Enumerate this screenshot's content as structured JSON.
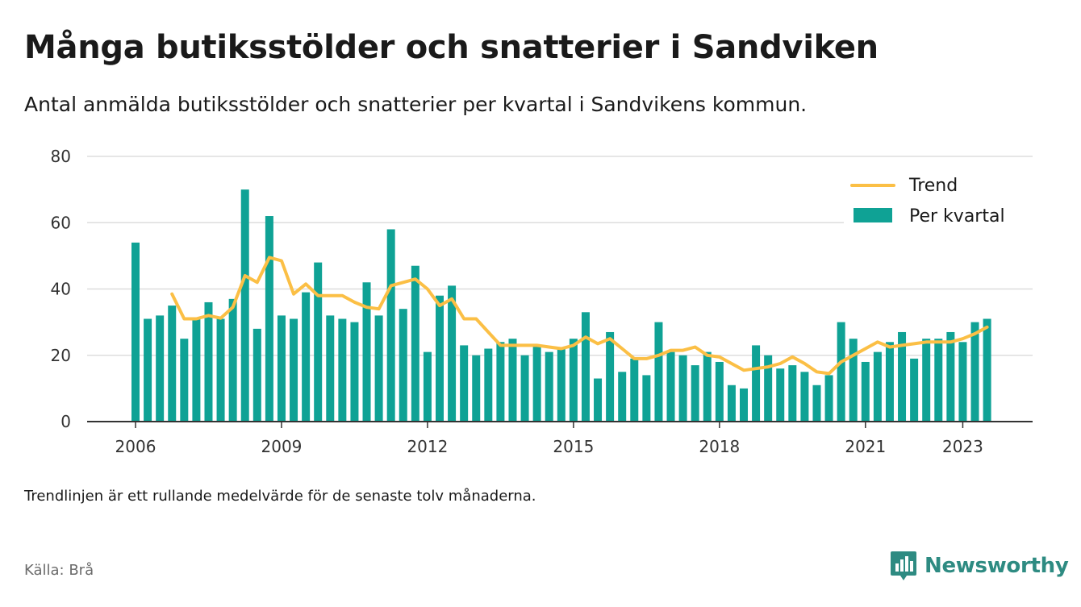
{
  "title": "Många butiksstölder och snatterier i Sandviken",
  "subtitle": "Antal anmälda butiksstölder och snatterier per kvartal i Sandvikens kommun.",
  "note": "Trendlinjen är ett rullande medelvärde för de senaste tolv månaderna.",
  "source": "Källa: Brå",
  "brand": {
    "name": "Newsworthy",
    "icon": "newsworthy-logo-icon"
  },
  "colors": {
    "bars": "#0fa295",
    "trend": "#fbbf45",
    "grid": "#dddddd",
    "axis": "#333333",
    "brand": "#2e8b82"
  },
  "chart_data": {
    "type": "bar",
    "title": "Många butiksstölder och snatterier i Sandviken",
    "ylim": [
      0,
      80
    ],
    "yticks": [
      0,
      20,
      40,
      60,
      80
    ],
    "xticks": [
      "2006",
      "2009",
      "2012",
      "2015",
      "2018",
      "2021",
      "2023"
    ],
    "grid": true,
    "legend_position": "top-right",
    "series": [
      {
        "name": "Per kvartal",
        "type": "bar",
        "values": [
          54,
          31,
          32,
          35,
          25,
          31,
          36,
          31,
          37,
          70,
          28,
          62,
          32,
          31,
          39,
          48,
          32,
          31,
          30,
          42,
          32,
          58,
          34,
          47,
          21,
          38,
          41,
          23,
          20,
          22,
          24,
          25,
          20,
          23,
          21,
          22,
          25,
          33,
          13,
          27,
          15,
          19,
          14,
          30,
          21,
          20,
          17,
          21,
          18,
          11,
          10,
          23,
          20,
          16,
          17,
          15,
          11,
          14,
          30,
          25,
          18,
          21,
          24,
          27,
          19,
          25,
          25,
          27,
          24,
          30,
          31
        ]
      },
      {
        "name": "Trend",
        "type": "line",
        "values": [
          null,
          null,
          null,
          38.5,
          31,
          31,
          32,
          31.2,
          34.5,
          44,
          42,
          49.5,
          48.5,
          38.5,
          41.5,
          38,
          38,
          38,
          36,
          34.5,
          34,
          41,
          42,
          43,
          40,
          35,
          37,
          31,
          31,
          27,
          23,
          23,
          23,
          23,
          22.5,
          22,
          23,
          25.5,
          23.5,
          25,
          22,
          19,
          19,
          20,
          21.5,
          21.5,
          22.5,
          20,
          19.5,
          17.5,
          15.5,
          16,
          16.5,
          17.5,
          19.5,
          17.5,
          15,
          14.5,
          18,
          20,
          22,
          24,
          22.5,
          23,
          23.5,
          24,
          24,
          24,
          25,
          26.5,
          28.5
        ]
      }
    ]
  }
}
